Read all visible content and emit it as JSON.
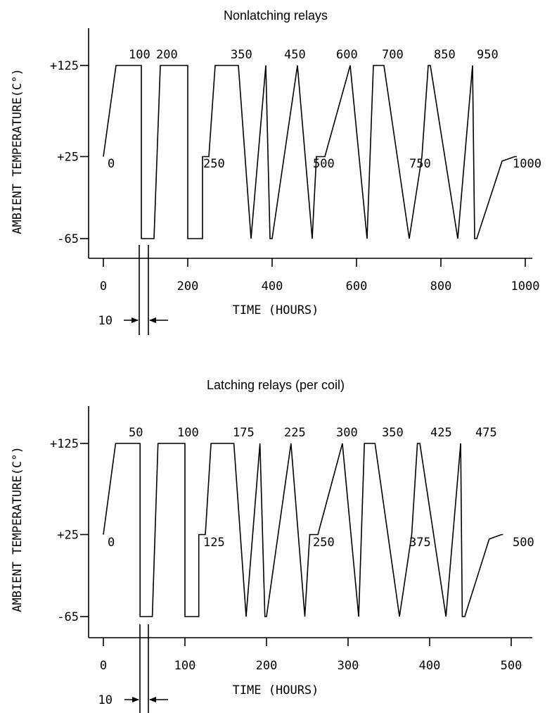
{
  "chart_data": [
    {
      "type": "line",
      "title": "Nonlatching relays",
      "xlabel": "TIME (HOURS)",
      "ylabel": "AMBIENT TEMPERATURE(C°)",
      "x_ticks": [
        "0",
        "200",
        "400",
        "600",
        "800",
        "1000"
      ],
      "x_tick_values": [
        0,
        200,
        400,
        600,
        800,
        1000
      ],
      "y_ticks": [
        "+125",
        "+25",
        "-65"
      ],
      "y_tick_values": [
        125,
        25,
        -65
      ],
      "xlim": [
        -35,
        1060
      ],
      "ylim": [
        -85,
        165
      ],
      "grid": false,
      "cycle_labels": [
        "0",
        "100",
        "200",
        "250",
        "350",
        "450",
        "500",
        "600",
        "700",
        "750",
        "850",
        "950",
        "1000"
      ],
      "gap_annotation": "10",
      "series": [
        {
          "x": [
            0,
            30,
            90,
            90,
            120,
            135,
            200,
            200,
            235,
            235,
            250,
            265,
            320,
            350,
            350,
            385,
            385,
            395,
            400,
            460,
            460,
            495,
            495,
            505,
            525,
            585,
            585,
            625,
            625,
            640,
            665,
            725,
            725,
            755,
            755,
            770,
            775,
            840,
            840,
            875,
            875,
            880,
            885,
            945,
            945,
            975,
            975,
            980
          ],
          "y": [
            25,
            125,
            125,
            -65,
            -65,
            125,
            125,
            -65,
            -65,
            25,
            25,
            125,
            125,
            -65,
            -65,
            125,
            125,
            -65,
            -65,
            125,
            125,
            -65,
            -65,
            25,
            25,
            125,
            125,
            -65,
            -65,
            125,
            125,
            -65,
            -65,
            25,
            25,
            125,
            125,
            -65,
            -65,
            125,
            125,
            -65,
            -65,
            20,
            20,
            25,
            25,
            25
          ]
        }
      ]
    },
    {
      "type": "line",
      "title": "Latching relays (per coil)",
      "xlabel": "TIME (HOURS)",
      "ylabel": "AMBIENT TEMPERATURE(C°)",
      "x_ticks": [
        "0",
        "100",
        "200",
        "300",
        "400",
        "500"
      ],
      "x_tick_values": [
        0,
        100,
        200,
        300,
        400,
        500
      ],
      "y_ticks": [
        "+125",
        "+25",
        "-65"
      ],
      "y_tick_values": [
        125,
        25,
        -65
      ],
      "xlim": [
        -17,
        530
      ],
      "ylim": [
        -85,
        165
      ],
      "grid": false,
      "cycle_labels": [
        "0",
        "50",
        "100",
        "125",
        "175",
        "225",
        "250",
        "300",
        "350",
        "375",
        "425",
        "475",
        "500"
      ],
      "gap_annotation": "10",
      "series": [
        {
          "x": [
            0,
            15,
            45,
            45,
            60,
            67,
            100,
            100,
            117,
            117,
            125,
            132,
            160,
            175,
            175,
            192,
            192,
            198,
            200,
            230,
            230,
            247,
            247,
            253,
            263,
            293,
            293,
            313,
            313,
            320,
            333,
            363,
            363,
            378,
            378,
            385,
            388,
            420,
            420,
            438,
            438,
            440,
            443,
            473,
            473,
            488,
            488,
            490
          ],
          "y": [
            25,
            125,
            125,
            -65,
            -65,
            125,
            125,
            -65,
            -65,
            25,
            25,
            125,
            125,
            -65,
            -65,
            125,
            125,
            -65,
            -65,
            125,
            125,
            -65,
            -65,
            25,
            25,
            125,
            125,
            -65,
            -65,
            125,
            125,
            -65,
            -65,
            25,
            25,
            125,
            125,
            -65,
            -65,
            125,
            125,
            -65,
            -65,
            20,
            20,
            25,
            25,
            25
          ]
        }
      ]
    }
  ]
}
